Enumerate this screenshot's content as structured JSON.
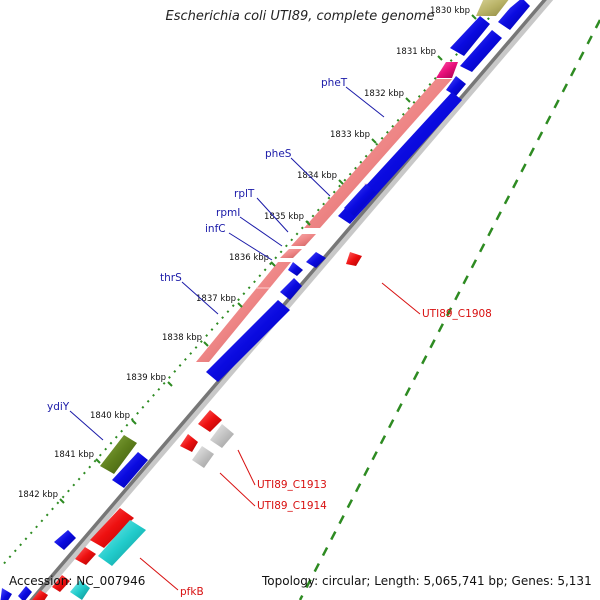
{
  "title": "Escherichia coli UTI89, complete genome",
  "footer": {
    "accession_label": "Accession:",
    "accession": "NC_007946",
    "topology_label": "Topology:",
    "topology": "circular;",
    "length_label": "Length:",
    "length": "5,065,741 bp;",
    "genes_label": "Genes:",
    "genes": "5,131"
  },
  "ticks": [
    {
      "kbp": 1830,
      "label": "1830 kbp"
    },
    {
      "kbp": 1831,
      "label": "1831 kbp"
    },
    {
      "kbp": 1832,
      "label": "1832 kbp"
    },
    {
      "kbp": 1833,
      "label": "1833 kbp"
    },
    {
      "kbp": 1834,
      "label": "1834 kbp"
    },
    {
      "kbp": 1835,
      "label": "1835 kbp"
    },
    {
      "kbp": 1836,
      "label": "1836 kbp"
    },
    {
      "kbp": 1837,
      "label": "1837 kbp"
    },
    {
      "kbp": 1838,
      "label": "1838 kbp"
    },
    {
      "kbp": 1839,
      "label": "1839 kbp"
    },
    {
      "kbp": 1840,
      "label": "1840 kbp"
    },
    {
      "kbp": 1841,
      "label": "1841 kbp"
    },
    {
      "kbp": 1842,
      "label": "1842 kbp"
    }
  ],
  "gene_labels": {
    "left": [
      "pheT",
      "pheS",
      "rplT",
      "rpmI",
      "infC",
      "thrS",
      "ydiY"
    ],
    "right": [
      "UTI89_C1908",
      "UTI89_C1913",
      "UTI89_C1914",
      "pfkB"
    ]
  },
  "colors": {
    "backbone": "#888888",
    "tick_dots": "#2e8b22",
    "outer_dots": "#2e8b22",
    "feature_blue": "#1a1ae6",
    "feature_pink": "#f08a8a",
    "feature_red": "#ee1c1c",
    "feature_olive": "#6b8e23",
    "feature_khaki": "#bdb76b",
    "feature_magenta": "#e8177a",
    "feature_cyan": "#1ec8c8",
    "feature_grey": "#c8c8c8",
    "label_left": "#1a1aa8",
    "label_right": "#d81010"
  }
}
